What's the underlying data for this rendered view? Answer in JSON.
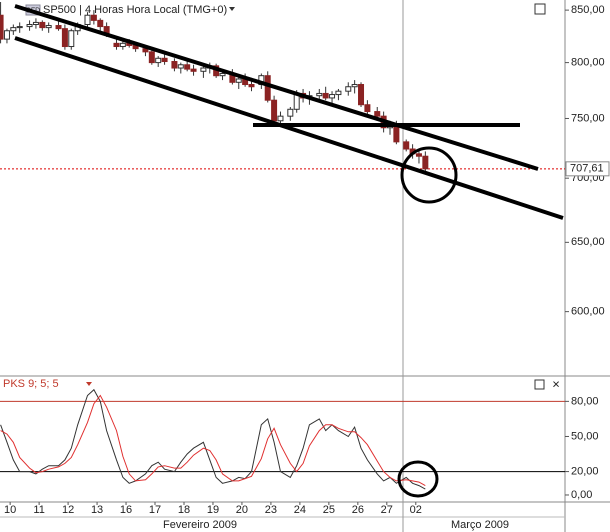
{
  "chart_data": [
    {
      "type": "candlestick",
      "title": "SP500 | 4 Horas Hora Local (TMG+0)",
      "badge": "CFD",
      "log": true,
      "up_color": "#ffffff",
      "down_color": "#8b2323",
      "wick_color": "#333333",
      "xlim": [
        -0.35,
        19.15
      ],
      "ylim": [
        557,
        860
      ],
      "yticks": [
        {
          "value": 850,
          "label": "850,00"
        },
        {
          "value": 800,
          "label": "800,00"
        },
        {
          "value": 750,
          "label": "750,00"
        },
        {
          "value": 700,
          "label": "700,00"
        },
        {
          "value": 650,
          "label": "650,00"
        },
        {
          "value": 600,
          "label": "600,00"
        }
      ],
      "xticks": [
        {
          "value": 0,
          "label": "10"
        },
        {
          "value": 1,
          "label": "11"
        },
        {
          "value": 2,
          "label": "12"
        },
        {
          "value": 3,
          "label": "13"
        },
        {
          "value": 4,
          "label": "16"
        },
        {
          "value": 5,
          "label": "17"
        },
        {
          "value": 6,
          "label": "18"
        },
        {
          "value": 7,
          "label": "19"
        },
        {
          "value": 8,
          "label": "20"
        },
        {
          "value": 9,
          "label": "23"
        },
        {
          "value": 10,
          "label": "24"
        },
        {
          "value": 11,
          "label": "25"
        },
        {
          "value": 12,
          "label": "26"
        },
        {
          "value": 13,
          "label": "27"
        },
        {
          "value": 14,
          "label": "02"
        }
      ],
      "periods": [
        "Fevereiro 2009",
        "Março 2009"
      ],
      "last_price": {
        "value": 707.61,
        "label": "707,61"
      },
      "x": [
        -0.33,
        -0.11,
        0.11,
        0.33,
        0.67,
        0.89,
        1.11,
        1.33,
        1.67,
        1.89,
        2.11,
        2.33,
        2.67,
        2.89,
        3.11,
        3.33,
        3.67,
        3.89,
        4.11,
        4.33,
        4.67,
        4.89,
        5.11,
        5.33,
        5.67,
        5.89,
        6.11,
        6.33,
        6.67,
        6.89,
        7.11,
        7.33,
        7.67,
        7.89,
        8.11,
        8.33,
        8.67,
        8.89,
        9.11,
        9.33,
        9.67,
        9.89,
        10.11,
        10.33,
        10.67,
        10.89,
        11.11,
        11.33,
        11.67,
        11.89,
        12.11,
        12.33,
        12.67,
        12.89,
        13.11,
        13.33,
        13.67,
        13.89,
        14.11,
        14.33
      ],
      "open": [
        845,
        822,
        830,
        833,
        834,
        836,
        838,
        833,
        835,
        832,
        815,
        830,
        836,
        845,
        840,
        834,
        818,
        815,
        818,
        816,
        813,
        810,
        800,
        804,
        801,
        795,
        798,
        794,
        792,
        795,
        797,
        788,
        790,
        782,
        785,
        780,
        780,
        788,
        766,
        748,
        752,
        758,
        772,
        768,
        770,
        772,
        768,
        771,
        774,
        778,
        780,
        762,
        756,
        752,
        742,
        745,
        730,
        724,
        720,
        718
      ],
      "high": [
        858,
        832,
        836,
        838,
        840,
        842,
        840,
        838,
        840,
        836,
        832,
        838,
        848,
        850,
        842,
        838,
        822,
        820,
        822,
        819,
        816,
        812,
        806,
        808,
        804,
        800,
        802,
        798,
        798,
        800,
        799,
        794,
        794,
        788,
        790,
        786,
        790,
        792,
        770,
        756,
        760,
        775,
        776,
        774,
        776,
        778,
        774,
        776,
        782,
        784,
        782,
        766,
        760,
        756,
        748,
        748,
        732,
        728,
        724,
        722
      ],
      "low": [
        818,
        818,
        826,
        828,
        830,
        832,
        830,
        828,
        830,
        812,
        812,
        826,
        832,
        836,
        830,
        824,
        812,
        812,
        814,
        810,
        806,
        798,
        796,
        798,
        792,
        790,
        792,
        788,
        786,
        790,
        786,
        784,
        780,
        776,
        778,
        774,
        776,
        764,
        744,
        744,
        748,
        755,
        764,
        762,
        764,
        766,
        762,
        766,
        770,
        772,
        760,
        752,
        748,
        738,
        736,
        728,
        722,
        716,
        712,
        704
      ],
      "close": [
        822,
        830,
        833,
        834,
        836,
        838,
        833,
        835,
        832,
        815,
        830,
        836,
        845,
        840,
        834,
        826,
        815,
        818,
        816,
        813,
        810,
        800,
        804,
        801,
        795,
        798,
        794,
        792,
        795,
        797,
        788,
        790,
        782,
        785,
        780,
        778,
        788,
        766,
        748,
        752,
        758,
        772,
        768,
        770,
        772,
        768,
        771,
        774,
        778,
        780,
        762,
        756,
        752,
        742,
        745,
        730,
        724,
        720,
        718,
        707.61
      ]
    },
    {
      "type": "line",
      "title": "PKS 9; 5; 5",
      "xlim": [
        -0.35,
        19.15
      ],
      "ylim": [
        -6,
        88
      ],
      "yticks": [
        {
          "value": 80,
          "label": "80,00"
        },
        {
          "value": 50,
          "label": "50,00"
        },
        {
          "value": 20,
          "label": "20,00"
        },
        {
          "value": 0,
          "label": "0,00"
        }
      ],
      "levels": [
        {
          "value": 80,
          "color": "#c0392b"
        },
        {
          "value": 20,
          "color": "#000000"
        }
      ],
      "x": [
        -0.33,
        -0.11,
        0.11,
        0.33,
        0.67,
        0.89,
        1.11,
        1.33,
        1.67,
        1.89,
        2.11,
        2.33,
        2.67,
        2.89,
        3.11,
        3.33,
        3.67,
        3.89,
        4.11,
        4.33,
        4.67,
        4.89,
        5.11,
        5.33,
        5.67,
        5.89,
        6.11,
        6.33,
        6.67,
        6.89,
        7.11,
        7.33,
        7.67,
        7.89,
        8.11,
        8.33,
        8.67,
        8.89,
        9.11,
        9.33,
        9.67,
        9.89,
        10.11,
        10.33,
        10.67,
        10.89,
        11.11,
        11.33,
        11.67,
        11.89,
        12.11,
        12.33,
        12.67,
        12.89,
        13.11,
        13.33,
        13.67,
        13.89,
        14.11,
        14.33
      ],
      "series": [
        {
          "color": "#333333",
          "values": [
            60,
            45,
            30,
            20,
            20,
            18,
            22,
            25,
            25,
            30,
            40,
            60,
            85,
            90,
            80,
            55,
            30,
            15,
            10,
            12,
            18,
            25,
            28,
            22,
            20,
            28,
            35,
            40,
            45,
            30,
            15,
            10,
            12,
            15,
            14,
            20,
            60,
            65,
            45,
            20,
            15,
            25,
            40,
            60,
            65,
            55,
            60,
            55,
            50,
            58,
            40,
            30,
            18,
            12,
            15,
            10,
            15,
            10,
            8,
            5
          ]
        },
        {
          "color": "#e03030",
          "values": [
            55,
            52,
            45,
            32,
            23,
            19,
            20,
            22,
            24,
            27,
            32,
            43,
            62,
            78,
            85,
            75,
            55,
            33,
            18,
            12,
            13,
            18,
            24,
            25,
            23,
            23,
            28,
            34,
            40,
            38,
            30,
            18,
            12,
            12,
            14,
            16,
            31,
            48,
            57,
            43,
            27,
            20,
            27,
            42,
            55,
            60,
            60,
            57,
            54,
            54,
            49,
            43,
            29,
            20,
            15,
            12,
            13,
            12,
            11,
            8
          ]
        }
      ]
    }
  ]
}
